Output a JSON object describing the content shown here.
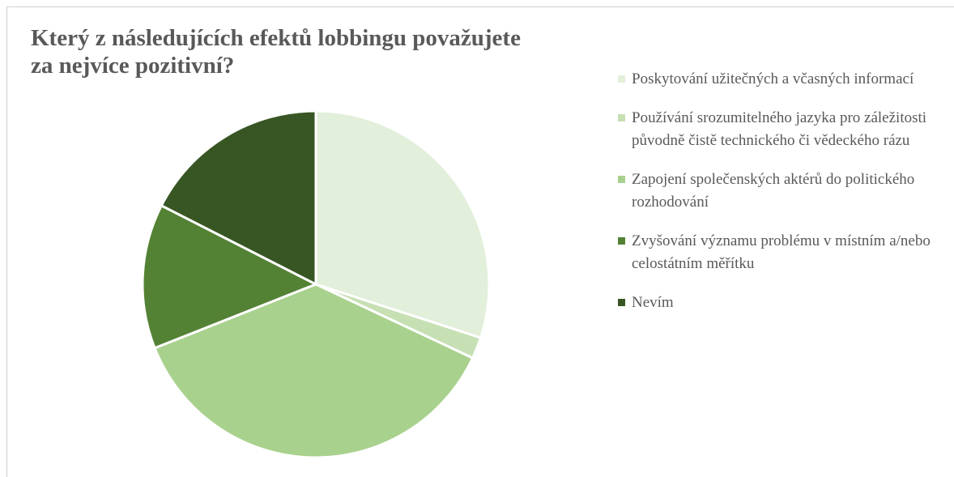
{
  "chart_data": {
    "type": "pie",
    "title": "Který z následujících efektů lobbingu považujete za nejvíce pozitivní?",
    "categories": [
      "Poskytování užitečných a včasných informací",
      "Používání srozumitelného jazyka pro záležitosti původně čistě technického či vědeckého rázu",
      "Zapojení společenských aktérů do politického rozhodování",
      "Zvyšování významu problému v místním a/nebo celostátním měřítku",
      "Nevím"
    ],
    "values": [
      30,
      2,
      37,
      13.5,
      17.5
    ],
    "colors": [
      "#e2efda",
      "#c6e0b4",
      "#a9d18e",
      "#548235",
      "#375623"
    ],
    "legend": "right"
  }
}
